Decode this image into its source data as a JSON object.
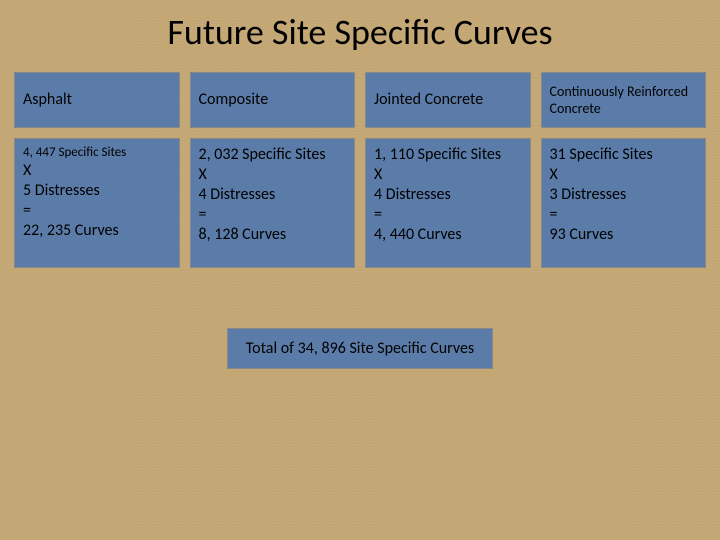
{
  "title": "Future Site Specific Curves",
  "background_color": "#c4a876",
  "cell_fill_color": "#5b7ca8",
  "cell_border_color": "#888888",
  "title_fontsize": 36,
  "header_fontsize": 16,
  "body_fontsize": 16,
  "columns": [
    {
      "header": "Asphalt",
      "sites": "4, 447 Specific Sites",
      "op": "X",
      "distresses": "5 Distresses",
      "eq": "=",
      "curves": "22, 235 Curves"
    },
    {
      "header": "Composite",
      "sites": "2, 032 Specific Sites",
      "op": "X",
      "distresses": "4 Distresses",
      "eq": "=",
      "curves": "8, 128 Curves"
    },
    {
      "header": "Jointed Concrete",
      "sites": "1, 110 Specific Sites",
      "op": "X",
      "distresses": "4 Distresses",
      "eq": "=",
      "curves": "4, 440 Curves"
    },
    {
      "header": "Continuously Reinforced Concrete",
      "sites": "31 Specific Sites",
      "op": "X",
      "distresses": "3 Distresses",
      "eq": "=",
      "curves": "93 Curves"
    }
  ],
  "total": "Total of 34, 896 Site Specific Curves"
}
